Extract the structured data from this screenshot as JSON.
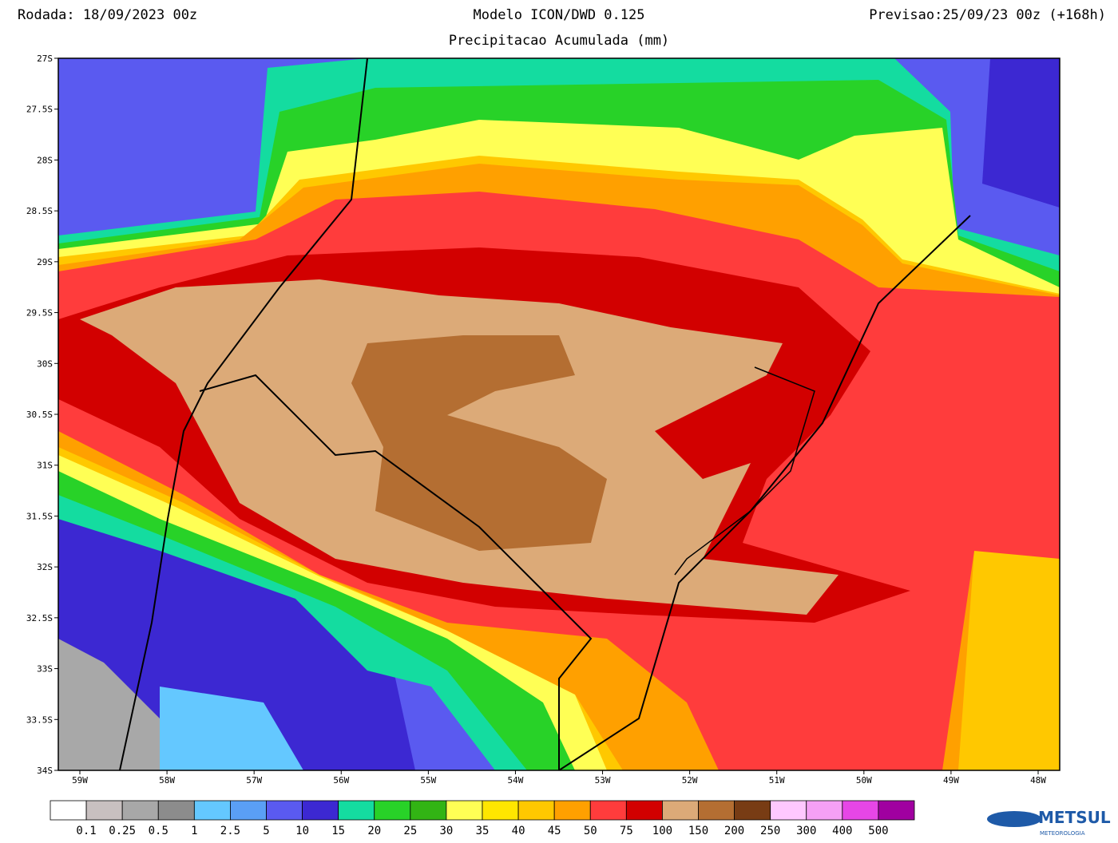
{
  "header": {
    "run": "Rodada: 18/09/2023 00z",
    "model": "Modelo ICON/DWD 0.125",
    "product": "Precipitacao Acumulada (mm)",
    "forecast": "Previsao:25/09/23 00z (+168h)"
  },
  "axes": {
    "lat_labels": [
      "27S",
      "27.5S",
      "28S",
      "28.5S",
      "29S",
      "29.5S",
      "30S",
      "30.5S",
      "31S",
      "31.5S",
      "32S",
      "32.5S",
      "33S",
      "33.5S",
      "34S"
    ],
    "lon_labels": [
      "59W",
      "58W",
      "57W",
      "56W",
      "55W",
      "54W",
      "53W",
      "52W",
      "51W",
      "50W",
      "49W",
      "48W"
    ]
  },
  "colorbar": {
    "colors": [
      "#ffffff",
      "#c8c0c0",
      "#a8a8a8",
      "#8c8c8c",
      "#64c8ff",
      "#5a9ff5",
      "#5a5af0",
      "#3c28d2",
      "#14dca0",
      "#28d228",
      "#32b414",
      "#ffff55",
      "#ffe600",
      "#ffc800",
      "#ffa000",
      "#ff3c3c",
      "#d20000",
      "#dcaa78",
      "#b46e32",
      "#783c14",
      "#ffc8ff",
      "#f5a0f5",
      "#e646e6",
      "#a000a0"
    ],
    "labels": [
      0.1,
      0.25,
      0.5,
      1,
      2.5,
      5,
      10,
      15,
      20,
      25,
      30,
      35,
      40,
      45,
      50,
      75,
      100,
      150,
      200,
      250,
      300,
      400,
      500
    ]
  },
  "logo": {
    "name": "METSUL",
    "sub": "METEOROLOGIA"
  }
}
